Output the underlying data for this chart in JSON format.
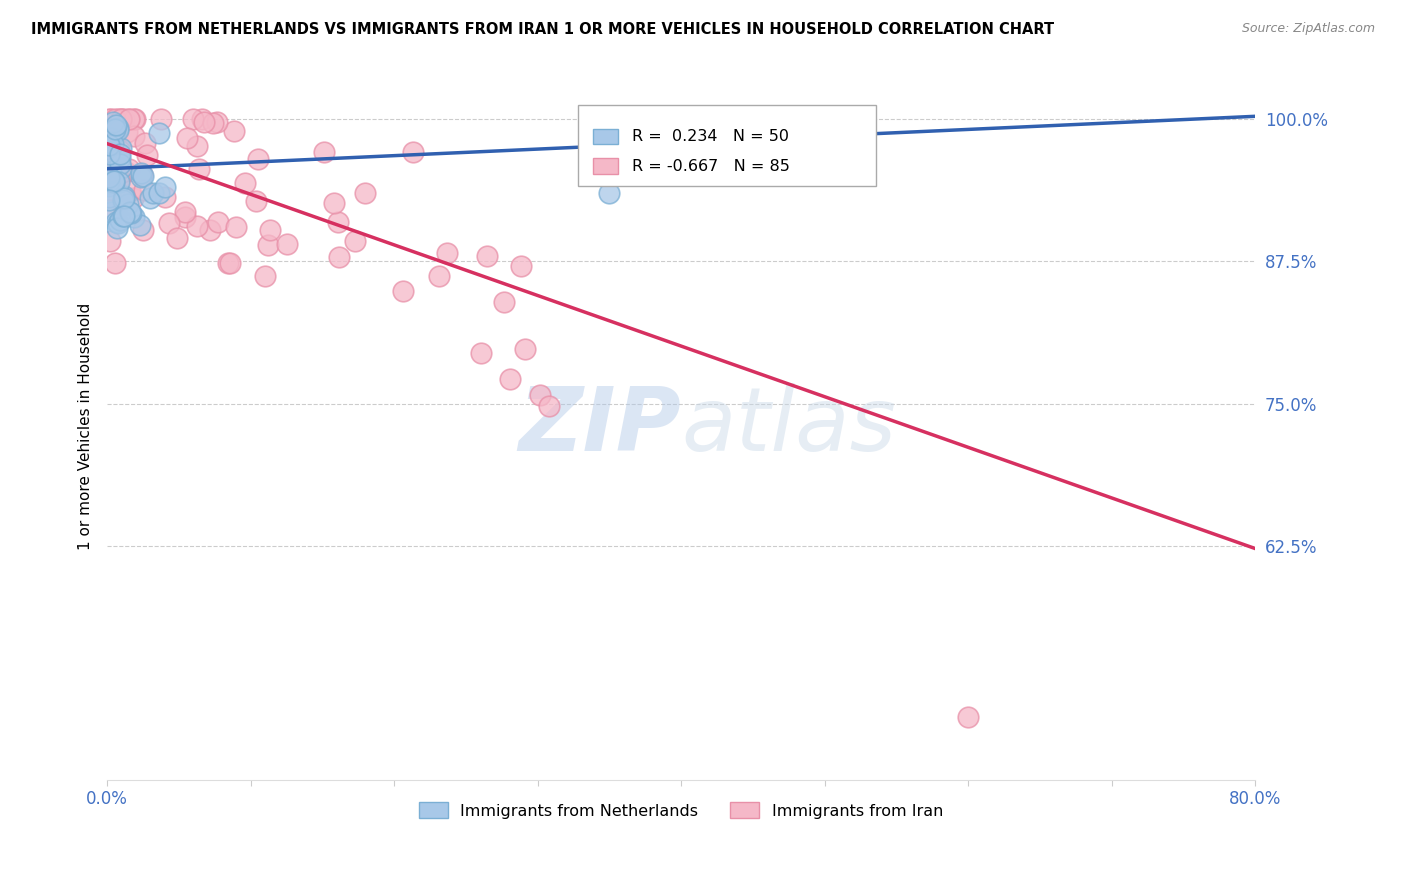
{
  "title": "IMMIGRANTS FROM NETHERLANDS VS IMMIGRANTS FROM IRAN 1 OR MORE VEHICLES IN HOUSEHOLD CORRELATION CHART",
  "source": "Source: ZipAtlas.com",
  "ylabel": "1 or more Vehicles in Household",
  "ytick_labels": [
    "100.0%",
    "87.5%",
    "75.0%",
    "62.5%"
  ],
  "ytick_values": [
    1.0,
    0.875,
    0.75,
    0.625
  ],
  "xlim": [
    0.0,
    0.8
  ],
  "ylim": [
    0.42,
    1.04
  ],
  "netherlands_R": 0.234,
  "netherlands_N": 50,
  "iran_R": -0.667,
  "iran_N": 85,
  "netherlands_color": "#a8c8e8",
  "netherlands_edge_color": "#7bafd4",
  "iran_color": "#f5b8c8",
  "iran_edge_color": "#e890a8",
  "netherlands_line_color": "#3060b0",
  "iran_line_color": "#d63060",
  "watermark_zip": "ZIP",
  "watermark_atlas": "atlas",
  "legend_label_netherlands": "Immigrants from Netherlands",
  "legend_label_iran": "Immigrants from Iran",
  "nl_line_x0": 0.0,
  "nl_line_y0": 0.956,
  "nl_line_x1": 0.8,
  "nl_line_y1": 1.002,
  "iran_line_x0": 0.0,
  "iran_line_y0": 0.978,
  "iran_line_x1": 0.8,
  "iran_line_y1": 0.623
}
